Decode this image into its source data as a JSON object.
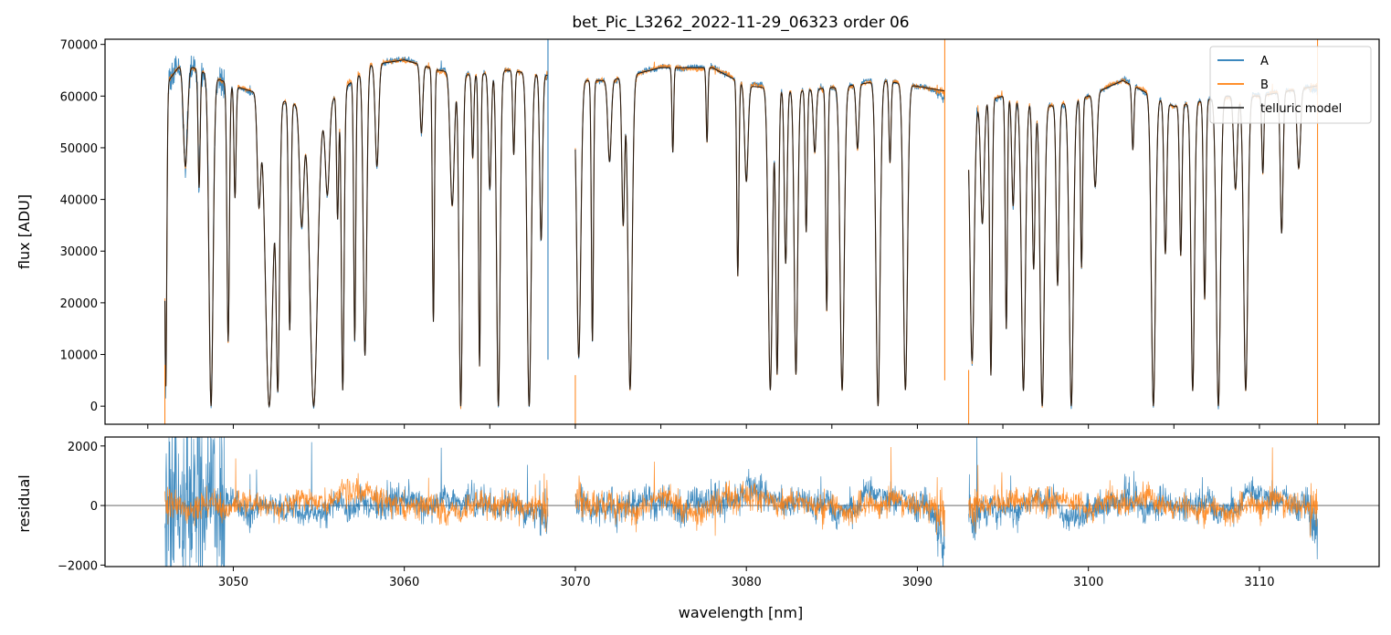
{
  "chart_data": {
    "type": "line",
    "title": "bet_Pic_L3262_2022-11-29_06323  order 06",
    "xlabel": "wavelength [nm]",
    "xlim": [
      3042.5,
      3117.0
    ],
    "xticks": [
      3050,
      3060,
      3070,
      3080,
      3090,
      3100,
      3110
    ],
    "colors": {
      "A": "#1f77b4",
      "B": "#ff7f0e",
      "model": "#333333"
    },
    "flux_panel": {
      "ylabel": "flux [ADU]",
      "ylim": [
        -3500,
        71000
      ],
      "yticks": [
        0,
        10000,
        20000,
        30000,
        40000,
        50000,
        60000,
        70000
      ],
      "legend": {
        "placement": "upper-right",
        "entries": [
          "A",
          "B",
          "telluric model"
        ]
      },
      "segments": [
        [
          3046.0,
          3068.4
        ],
        [
          3070.0,
          3091.6
        ],
        [
          3093.0,
          3113.4
        ]
      ],
      "series": [
        {
          "name": "A",
          "color": "#1f77b4"
        },
        {
          "name": "B",
          "color": "#ff7f0e"
        },
        {
          "name": "telluric model",
          "color": "#333333"
        }
      ],
      "continuum": [
        [
          3046.0,
          62000
        ],
        [
          3047.0,
          66500
        ],
        [
          3048.0,
          65000
        ],
        [
          3050.0,
          62000
        ],
        [
          3052.0,
          60000
        ],
        [
          3055.0,
          57000
        ],
        [
          3058.0,
          66000
        ],
        [
          3060.0,
          67000
        ],
        [
          3062.0,
          65000
        ],
        [
          3064.0,
          64000
        ],
        [
          3066.0,
          65000
        ],
        [
          3068.4,
          64000
        ],
        [
          3070.0,
          63000
        ],
        [
          3072.0,
          63000
        ],
        [
          3075.0,
          65500
        ],
        [
          3078.0,
          65500
        ],
        [
          3080.0,
          62000
        ],
        [
          3083.0,
          61000
        ],
        [
          3086.0,
          62000
        ],
        [
          3088.0,
          63000
        ],
        [
          3091.6,
          61000
        ],
        [
          3093.0,
          58000
        ],
        [
          3095.0,
          60000
        ],
        [
          3098.0,
          58000
        ],
        [
          3100.0,
          60000
        ],
        [
          3102.0,
          63000
        ],
        [
          3105.0,
          58000
        ],
        [
          3108.0,
          60000
        ],
        [
          3110.0,
          60000
        ],
        [
          3113.4,
          62000
        ]
      ],
      "absorption_lines": [
        [
          3046.05,
          0.95,
          0.06
        ],
        [
          3047.2,
          0.3,
          0.12
        ],
        [
          3048.0,
          0.35,
          0.06
        ],
        [
          3048.7,
          1.0,
          0.12
        ],
        [
          3049.7,
          0.8,
          0.07
        ],
        [
          3050.1,
          0.35,
          0.06
        ],
        [
          3051.5,
          0.35,
          0.1
        ],
        [
          3052.1,
          1.0,
          0.22
        ],
        [
          3052.6,
          0.95,
          0.1
        ],
        [
          3053.3,
          0.75,
          0.07
        ],
        [
          3054.0,
          0.4,
          0.12
        ],
        [
          3054.7,
          1.0,
          0.22
        ],
        [
          3055.5,
          0.3,
          0.12
        ],
        [
          3056.1,
          0.4,
          0.06
        ],
        [
          3056.4,
          0.95,
          0.08
        ],
        [
          3057.1,
          0.8,
          0.06
        ],
        [
          3057.7,
          0.85,
          0.1
        ],
        [
          3058.4,
          0.3,
          0.1
        ],
        [
          3061.0,
          0.2,
          0.08
        ],
        [
          3061.7,
          0.75,
          0.06
        ],
        [
          3062.8,
          0.4,
          0.12
        ],
        [
          3063.3,
          1.0,
          0.1
        ],
        [
          3064.0,
          0.25,
          0.06
        ],
        [
          3064.4,
          0.88,
          0.06
        ],
        [
          3065.0,
          0.35,
          0.08
        ],
        [
          3065.5,
          1.0,
          0.1
        ],
        [
          3066.4,
          0.25,
          0.06
        ],
        [
          3067.3,
          1.0,
          0.12
        ],
        [
          3068.0,
          0.5,
          0.08
        ],
        [
          3070.2,
          0.85,
          0.12
        ],
        [
          3071.0,
          0.8,
          0.06
        ],
        [
          3072.0,
          0.25,
          0.1
        ],
        [
          3072.8,
          0.45,
          0.08
        ],
        [
          3073.2,
          0.95,
          0.12
        ],
        [
          3075.7,
          0.25,
          0.05
        ],
        [
          3077.7,
          0.22,
          0.05
        ],
        [
          3079.5,
          0.6,
          0.06
        ],
        [
          3080.0,
          0.3,
          0.1
        ],
        [
          3081.4,
          0.95,
          0.12
        ],
        [
          3081.8,
          0.9,
          0.08
        ],
        [
          3082.3,
          0.55,
          0.08
        ],
        [
          3082.9,
          0.9,
          0.1
        ],
        [
          3083.5,
          0.45,
          0.06
        ],
        [
          3084.0,
          0.2,
          0.08
        ],
        [
          3084.7,
          0.7,
          0.06
        ],
        [
          3085.6,
          0.95,
          0.12
        ],
        [
          3086.5,
          0.2,
          0.08
        ],
        [
          3087.7,
          1.0,
          0.12
        ],
        [
          3088.4,
          0.25,
          0.06
        ],
        [
          3089.3,
          0.95,
          0.12
        ],
        [
          3093.2,
          0.85,
          0.12
        ],
        [
          3093.8,
          0.4,
          0.1
        ],
        [
          3094.3,
          0.9,
          0.07
        ],
        [
          3095.2,
          0.75,
          0.06
        ],
        [
          3095.6,
          0.35,
          0.08
        ],
        [
          3096.2,
          0.95,
          0.12
        ],
        [
          3096.8,
          0.55,
          0.08
        ],
        [
          3097.3,
          1.0,
          0.12
        ],
        [
          3098.2,
          0.6,
          0.08
        ],
        [
          3099.0,
          1.0,
          0.12
        ],
        [
          3099.6,
          0.55,
          0.06
        ],
        [
          3100.4,
          0.3,
          0.1
        ],
        [
          3102.6,
          0.2,
          0.06
        ],
        [
          3103.8,
          1.0,
          0.12
        ],
        [
          3104.5,
          0.5,
          0.08
        ],
        [
          3105.4,
          0.5,
          0.07
        ],
        [
          3106.1,
          0.95,
          0.1
        ],
        [
          3106.8,
          0.65,
          0.07
        ],
        [
          3107.6,
          1.0,
          0.12
        ],
        [
          3108.6,
          0.3,
          0.1
        ],
        [
          3109.2,
          0.95,
          0.12
        ],
        [
          3110.2,
          0.25,
          0.06
        ],
        [
          3111.3,
          0.45,
          0.08
        ],
        [
          3112.3,
          0.25,
          0.1
        ]
      ]
    },
    "residual_panel": {
      "ylabel": "residual",
      "ylim": [
        -2050,
        2300
      ],
      "yticks": [
        -2000,
        0,
        2000
      ],
      "reference_line": 0,
      "series": [
        {
          "name": "A",
          "color": "#1f77b4",
          "noise_amplitude": 260
        },
        {
          "name": "B",
          "color": "#ff7f0e",
          "noise_amplitude": 230
        }
      ]
    }
  }
}
